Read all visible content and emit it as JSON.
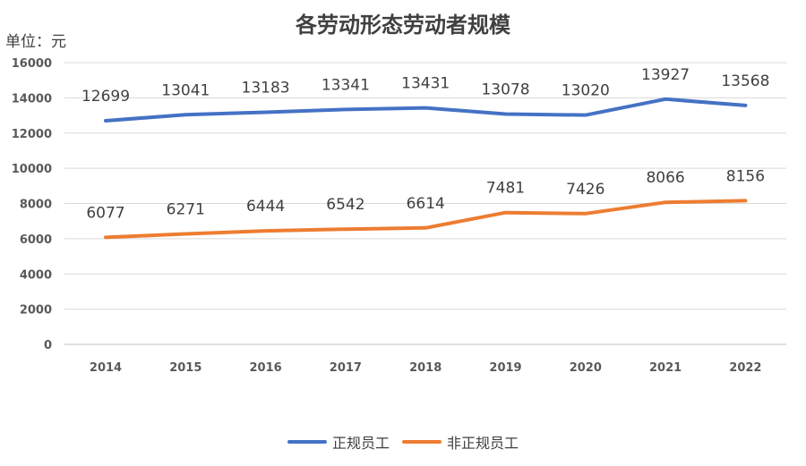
{
  "chart_data": {
    "type": "line",
    "title": "各劳动形态劳动者规模",
    "unit_label": "单位：元",
    "categories": [
      "2014",
      "2015",
      "2016",
      "2017",
      "2018",
      "2019",
      "2020",
      "2021",
      "2022"
    ],
    "ylim": [
      0,
      16000
    ],
    "yticks": [
      0,
      2000,
      4000,
      6000,
      8000,
      10000,
      12000,
      14000,
      16000
    ],
    "grid": true,
    "legend_position": "bottom",
    "series": [
      {
        "name": "正规员工",
        "color": "#4472C4",
        "values": [
          12699,
          13041,
          13183,
          13341,
          13431,
          13078,
          13020,
          13927,
          13568
        ]
      },
      {
        "name": "非正规员工",
        "color": "#ED7D31",
        "values": [
          6077,
          6271,
          6444,
          6542,
          6614,
          7481,
          7426,
          8066,
          8156
        ]
      }
    ]
  }
}
